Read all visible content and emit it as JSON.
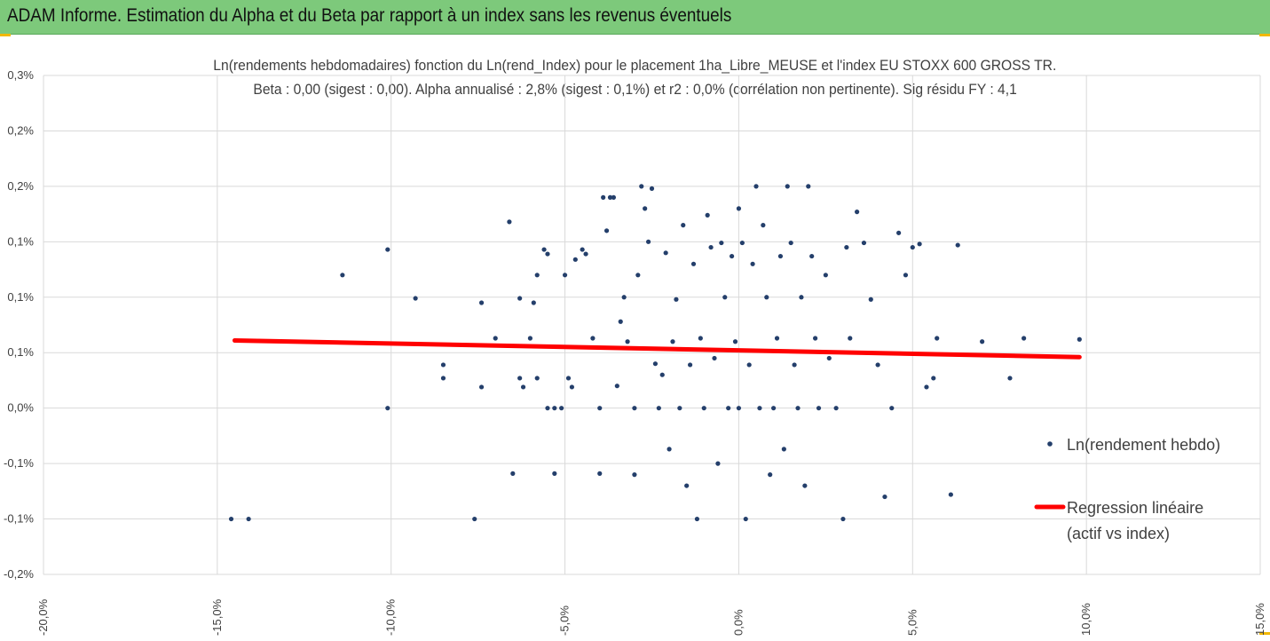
{
  "header": {
    "title": "ADAM Informe. Estimation du Alpha et du Beta par rapport à un index sans les revenus éventuels"
  },
  "colors": {
    "banner_bg": "#7dc97b",
    "point": "#243f6b",
    "regression": "#ff0000",
    "grid": "#d9d9d9",
    "corner_accent": "#f2b800"
  },
  "chart_data": {
    "type": "scatter",
    "title_line1": "Ln(rendements hebdomadaires) fonction du Ln(rend_Index) pour le placement 1ha_Libre_MEUSE et l'index EU STOXX 600 GROSS TR.",
    "title_line2": "Beta : 0,00 (sigest : 0,00). Alpha annualisé : 2,8% (sigest : 0,1%) et r2 : 0,0% (corrélation non pertinente). Sig résidu FY : 4,1",
    "xlabel": "",
    "ylabel": "",
    "xlim": [
      -20,
      15
    ],
    "ylim": [
      -0.15,
      0.3
    ],
    "x_ticks": [
      -20,
      -15,
      -10,
      -5,
      0,
      5,
      10,
      15
    ],
    "x_tick_labels": [
      "-20,0%",
      "-15,0%",
      "-10,0%",
      "-5,0%",
      "0,0%",
      "5,0%",
      "10,0%",
      "15,0%"
    ],
    "y_ticks": [
      -0.15,
      -0.1,
      -0.05,
      0,
      0.05,
      0.1,
      0.15,
      0.2,
      0.25,
      0.3
    ],
    "y_tick_labels": [
      "-0,2%",
      "-0,1%",
      "-0,1%",
      "0,0%",
      "0,1%",
      "0,1%",
      "0,1%",
      "0,2%",
      "0,2%",
      "0,3%"
    ],
    "grid": true,
    "legend_position": "right",
    "series": [
      {
        "name": "Ln(rendement hebdo)",
        "kind": "scatter",
        "points": [
          [
            -14.6,
            -0.1
          ],
          [
            -14.1,
            -0.1
          ],
          [
            -11.4,
            0.12
          ],
          [
            -10.1,
            0.143
          ],
          [
            -10.1,
            0.0
          ],
          [
            -9.3,
            0.099
          ],
          [
            -8.5,
            0.039
          ],
          [
            -8.5,
            0.027
          ],
          [
            -7.4,
            0.095
          ],
          [
            -7.4,
            0.019
          ],
          [
            -7.6,
            -0.1
          ],
          [
            -7.0,
            0.063
          ],
          [
            -6.6,
            0.168
          ],
          [
            -6.5,
            -0.059
          ],
          [
            -6.3,
            0.027
          ],
          [
            -6.3,
            0.099
          ],
          [
            -6.2,
            0.019
          ],
          [
            -6.0,
            0.063
          ],
          [
            -5.9,
            0.095
          ],
          [
            -5.8,
            0.027
          ],
          [
            -5.8,
            0.12
          ],
          [
            -5.6,
            0.143
          ],
          [
            -5.5,
            0.139
          ],
          [
            -5.5,
            0.0
          ],
          [
            -5.3,
            0.0
          ],
          [
            -5.3,
            -0.059
          ],
          [
            -5.1,
            0.0
          ],
          [
            -5.0,
            0.12
          ],
          [
            -4.9,
            0.027
          ],
          [
            -4.8,
            0.019
          ],
          [
            -4.7,
            0.134
          ],
          [
            -4.5,
            0.143
          ],
          [
            -4.4,
            0.139
          ],
          [
            -4.2,
            0.063
          ],
          [
            -4.0,
            -0.059
          ],
          [
            -4.0,
            0.0
          ],
          [
            -3.9,
            0.19
          ],
          [
            -3.8,
            0.16
          ],
          [
            -3.7,
            0.19
          ],
          [
            -3.6,
            0.19
          ],
          [
            -3.5,
            0.02
          ],
          [
            -3.4,
            0.078
          ],
          [
            -3.3,
            0.1
          ],
          [
            -3.2,
            0.06
          ],
          [
            -3.0,
            -0.06
          ],
          [
            -3.0,
            0.0
          ],
          [
            -2.9,
            0.12
          ],
          [
            -2.8,
            0.2
          ],
          [
            -2.7,
            0.18
          ],
          [
            -2.6,
            0.15
          ],
          [
            -2.5,
            0.198
          ],
          [
            -2.4,
            0.04
          ],
          [
            -2.3,
            0.0
          ],
          [
            -2.2,
            0.03
          ],
          [
            -2.1,
            0.14
          ],
          [
            -2.0,
            -0.037
          ],
          [
            -1.9,
            0.06
          ],
          [
            -1.8,
            0.098
          ],
          [
            -1.7,
            0.0
          ],
          [
            -1.6,
            0.165
          ],
          [
            -1.5,
            -0.07
          ],
          [
            -1.4,
            0.039
          ],
          [
            -1.3,
            0.13
          ],
          [
            -1.2,
            -0.1
          ],
          [
            -1.1,
            0.063
          ],
          [
            -1.0,
            0.0
          ],
          [
            -0.9,
            0.174
          ],
          [
            -0.8,
            0.145
          ],
          [
            -0.7,
            0.045
          ],
          [
            -0.6,
            -0.05
          ],
          [
            -0.5,
            0.149
          ],
          [
            -0.4,
            0.1
          ],
          [
            -0.3,
            0.0
          ],
          [
            -0.2,
            0.137
          ],
          [
            -0.1,
            0.06
          ],
          [
            0.0,
            0.18
          ],
          [
            0.0,
            0.0
          ],
          [
            0.1,
            0.149
          ],
          [
            0.2,
            -0.1
          ],
          [
            0.3,
            0.039
          ],
          [
            0.4,
            0.13
          ],
          [
            0.5,
            0.2
          ],
          [
            0.6,
            0.0
          ],
          [
            0.7,
            0.165
          ],
          [
            0.8,
            0.1
          ],
          [
            0.9,
            -0.06
          ],
          [
            1.0,
            0.0
          ],
          [
            1.1,
            0.063
          ],
          [
            1.2,
            0.137
          ],
          [
            1.3,
            -0.037
          ],
          [
            1.4,
            0.2
          ],
          [
            1.5,
            0.149
          ],
          [
            1.6,
            0.039
          ],
          [
            1.7,
            0.0
          ],
          [
            1.8,
            0.1
          ],
          [
            1.9,
            -0.07
          ],
          [
            2.0,
            0.2
          ],
          [
            2.1,
            0.137
          ],
          [
            2.2,
            0.063
          ],
          [
            2.3,
            0.0
          ],
          [
            2.5,
            0.12
          ],
          [
            2.6,
            0.045
          ],
          [
            2.8,
            0.0
          ],
          [
            3.0,
            -0.1
          ],
          [
            3.1,
            0.145
          ],
          [
            3.2,
            0.063
          ],
          [
            3.4,
            0.177
          ],
          [
            3.6,
            0.149
          ],
          [
            3.8,
            0.098
          ],
          [
            4.0,
            0.039
          ],
          [
            4.2,
            -0.08
          ],
          [
            4.4,
            0.0
          ],
          [
            4.6,
            0.158
          ],
          [
            4.8,
            0.12
          ],
          [
            5.0,
            0.145
          ],
          [
            5.2,
            0.148
          ],
          [
            5.4,
            0.019
          ],
          [
            5.6,
            0.027
          ],
          [
            5.7,
            0.063
          ],
          [
            6.1,
            -0.078
          ],
          [
            6.3,
            0.147
          ],
          [
            7.0,
            0.06
          ],
          [
            7.8,
            0.027
          ],
          [
            8.2,
            0.063
          ],
          [
            9.8,
            0.062
          ]
        ]
      },
      {
        "name": "Regression linéaire (actif vs index)",
        "name_line1": "Regression linéaire",
        "name_line2": "(actif vs index)",
        "kind": "line",
        "points": [
          [
            -14.5,
            0.061
          ],
          [
            9.8,
            0.046
          ]
        ]
      }
    ]
  }
}
